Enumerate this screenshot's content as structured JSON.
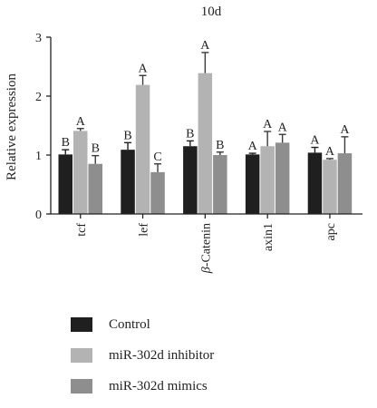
{
  "chart_data": {
    "type": "bar",
    "title": "10d",
    "ylabel": "Relative expression",
    "xlabel": "",
    "ylim": [
      0,
      3
    ],
    "yticks": [
      0,
      1,
      2,
      3
    ],
    "categories": [
      "tcf",
      "lef",
      "β-Catenin",
      "axin1",
      "apc"
    ],
    "series": [
      {
        "name": "Control",
        "color": "#1f1f1f",
        "values": [
          1.01,
          1.09,
          1.15,
          1.01,
          1.04
        ],
        "errors": [
          0.08,
          0.12,
          0.09,
          0.02,
          0.09
        ],
        "letters": [
          "B",
          "B",
          "B",
          "A",
          "A"
        ]
      },
      {
        "name": "miR-302d inhibitor",
        "color": "#b3b3b3",
        "values": [
          1.41,
          2.19,
          2.39,
          1.15,
          0.92
        ],
        "errors": [
          0.04,
          0.16,
          0.35,
          0.25,
          0.02
        ],
        "letters": [
          "A",
          "A",
          "A",
          "A",
          "A"
        ]
      },
      {
        "name": "miR-302d mimics",
        "color": "#8e8e8e",
        "values": [
          0.85,
          0.71,
          1.0,
          1.21,
          1.03
        ],
        "errors": [
          0.14,
          0.14,
          0.05,
          0.14,
          0.28
        ],
        "letters": [
          "B",
          "C",
          "B",
          "A",
          "A"
        ]
      }
    ],
    "legend_position": "bottom"
  }
}
